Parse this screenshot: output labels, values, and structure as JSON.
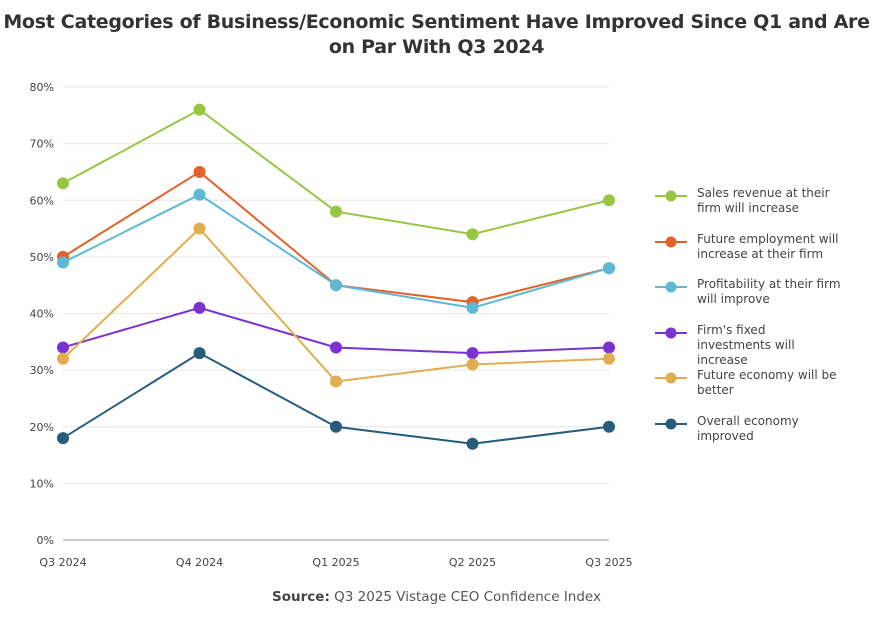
{
  "chart_data": {
    "type": "line",
    "title": "Most Categories of Business/Economic Sentiment Have Improved Since Q1 and Are on Par With Q3 2024",
    "categories": [
      "Q3 2024",
      "Q4 2024",
      "Q1 2025",
      "Q2 2025",
      "Q3 2025"
    ],
    "ylim": [
      0,
      80
    ],
    "yticks": [
      "0%",
      "10%",
      "20%",
      "30%",
      "40%",
      "50%",
      "60%",
      "70%",
      "80%"
    ],
    "grid": true,
    "legend": "right",
    "series": [
      {
        "name": "Sales revenue at their firm will increase",
        "color": "#97c742",
        "values": [
          63,
          76,
          58,
          54,
          60
        ]
      },
      {
        "name": "Future employment will increase at their firm",
        "color": "#e2622a",
        "values": [
          50,
          65,
          45,
          42,
          48
        ]
      },
      {
        "name": "Profitability at their firm will improve",
        "color": "#5db9d6",
        "values": [
          49,
          61,
          45,
          41,
          48
        ]
      },
      {
        "name": "Firm's fixed investments will increase",
        "color": "#7b32d0",
        "values": [
          34,
          41,
          34,
          33,
          34
        ]
      },
      {
        "name": "Future economy will be better",
        "color": "#e0ae4f",
        "values": [
          32,
          55,
          28,
          31,
          32
        ]
      },
      {
        "name": "Overall economy improved",
        "color": "#275d7c",
        "values": [
          18,
          33,
          20,
          17,
          20
        ]
      }
    ]
  },
  "source": {
    "label": "Source:",
    "text": "Q3 2025 Vistage CEO Confidence Index"
  }
}
